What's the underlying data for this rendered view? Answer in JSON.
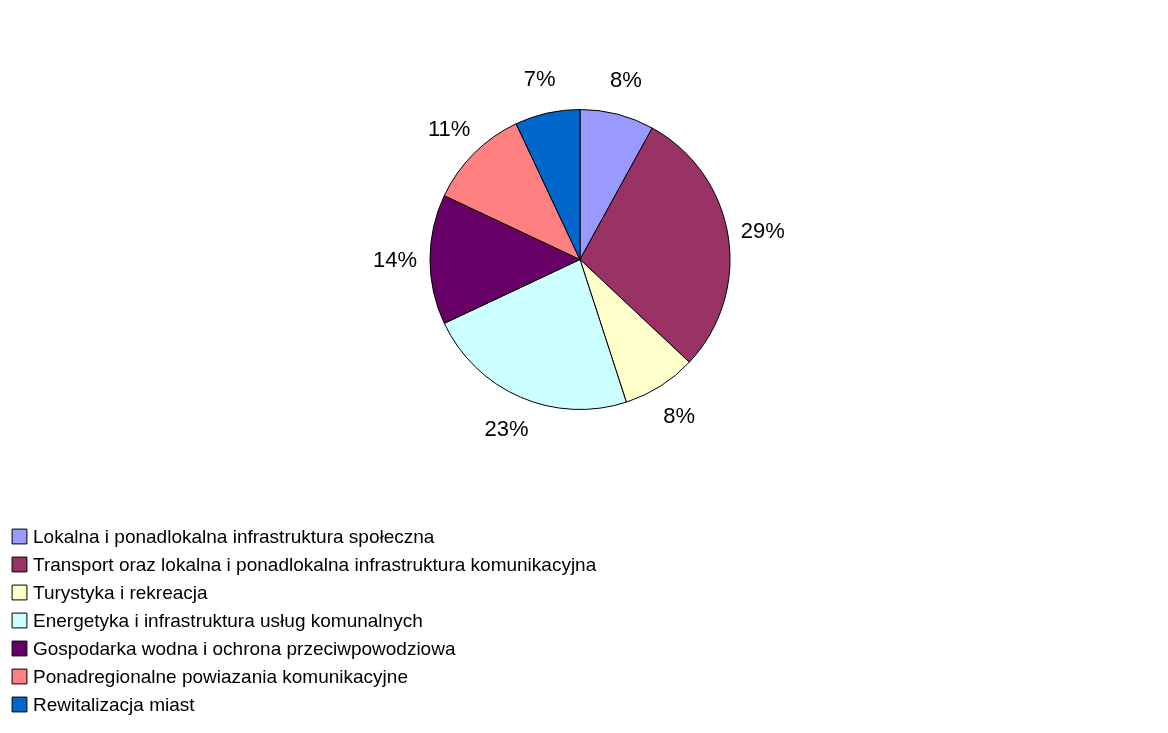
{
  "chart_data": {
    "type": "pie",
    "categories": [
      "Lokalna i ponadlokalna infrastruktura społeczna",
      "Transport oraz lokalna i ponadlokalna infrastruktura komunikacyjna",
      "Turystyka i rekreacja",
      "Energetyka i infrastruktura usług komunalnych",
      "Gospodarka wodna i ochrona przeciwpowodziowa",
      "Ponadregionalne powiazania komunikacyjne",
      "Rewitalizacja miast"
    ],
    "values": [
      8,
      29,
      8,
      23,
      14,
      11,
      7
    ],
    "value_labels": [
      "8%",
      "29%",
      "8%",
      "23%",
      "14%",
      "11%",
      "7%"
    ],
    "colors": [
      "#9999ff",
      "#993366",
      "#ffffcc",
      "#ccffff",
      "#660066",
      "#ff8080",
      "#0066cc"
    ],
    "legend": "bottom"
  }
}
